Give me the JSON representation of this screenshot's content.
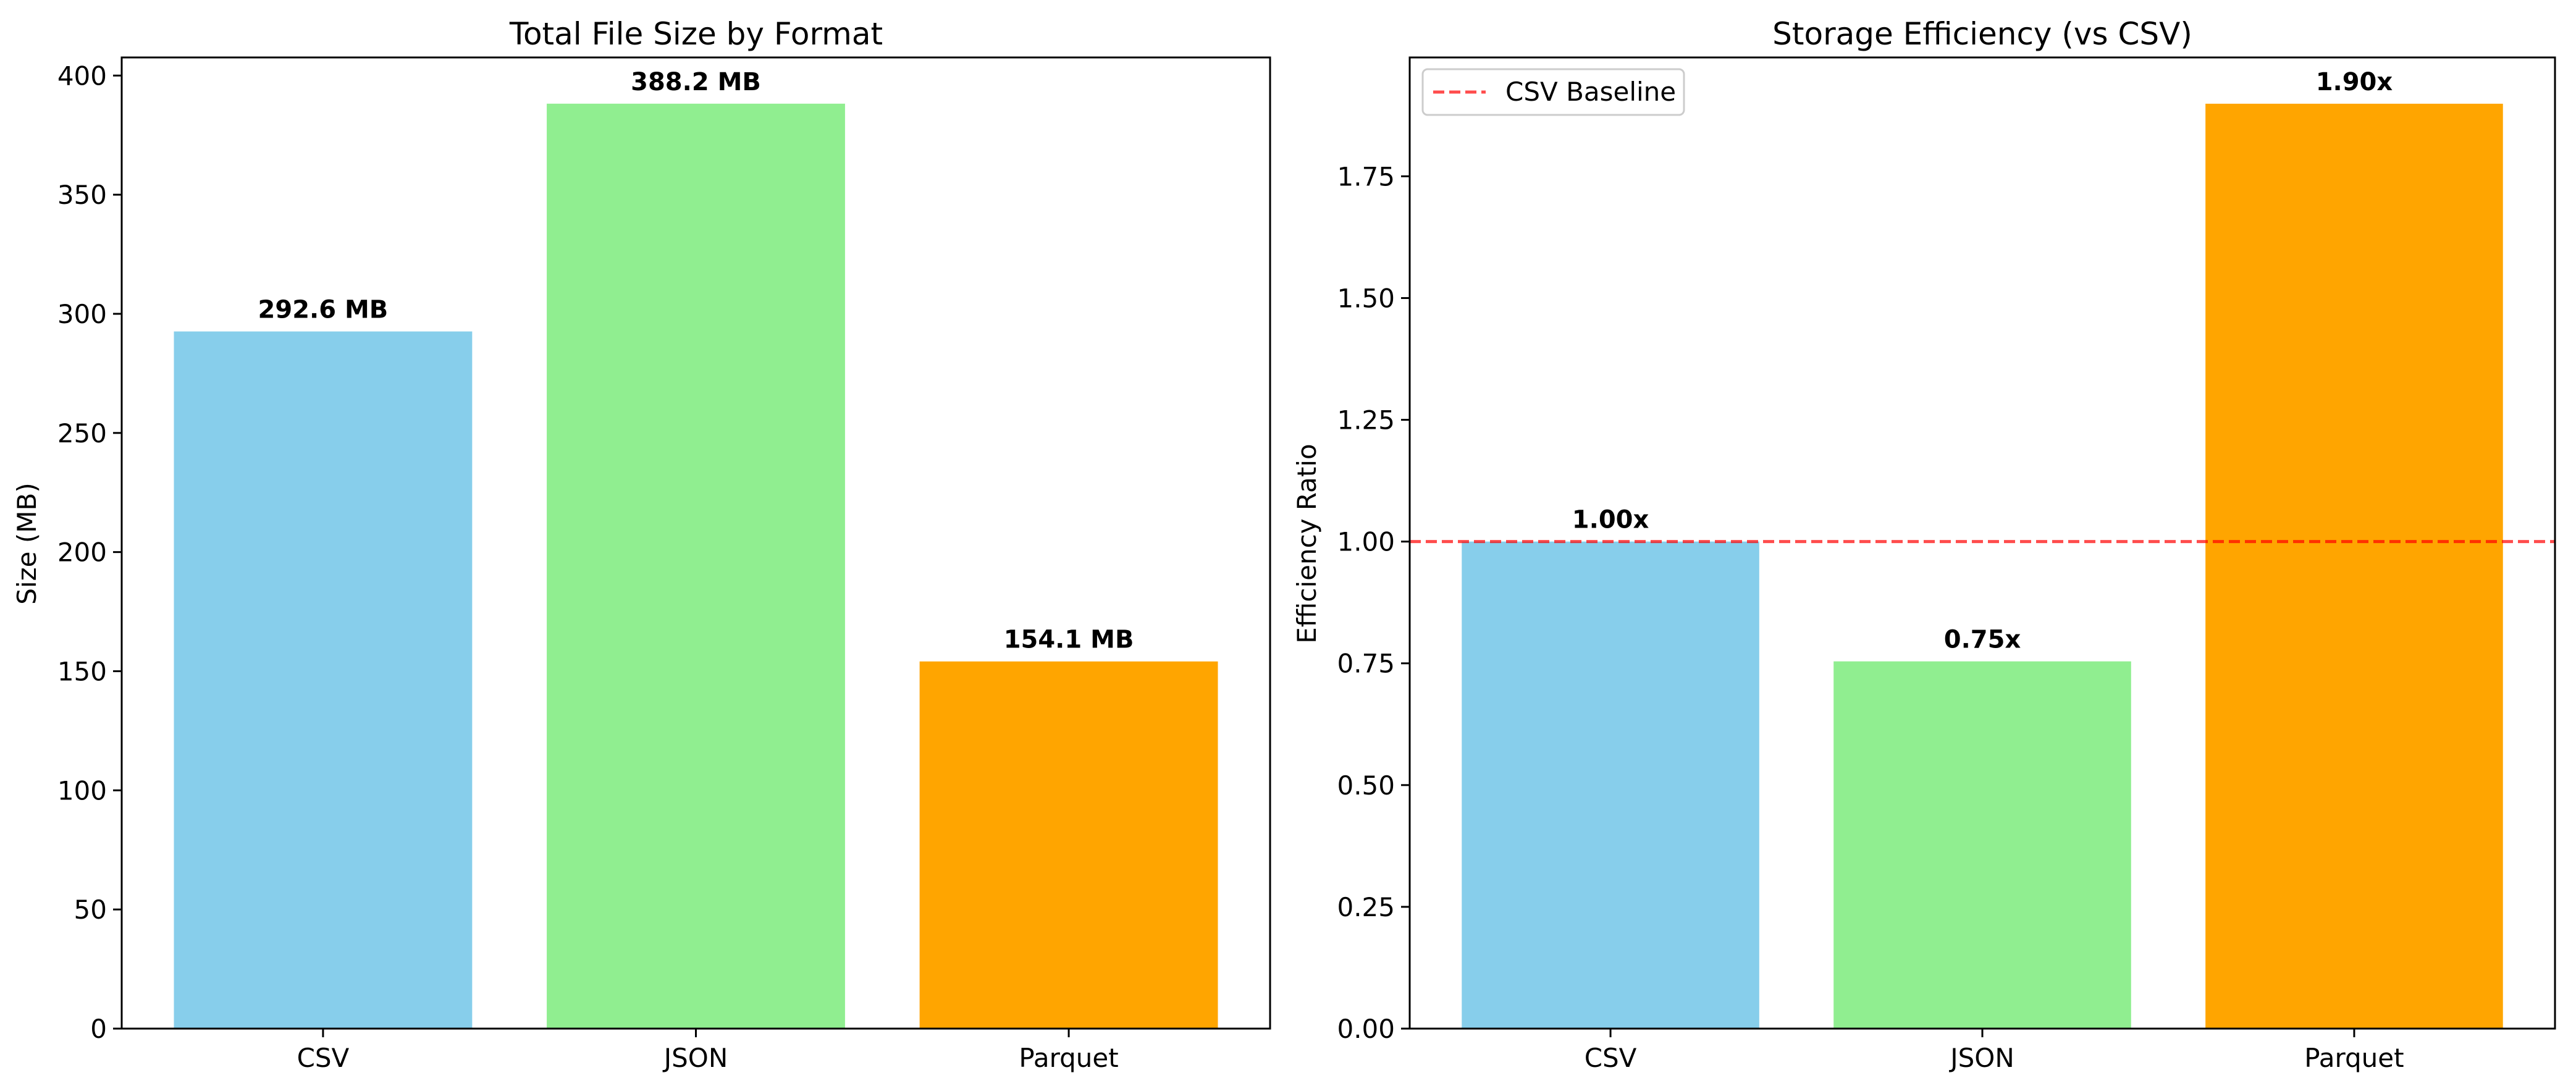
{
  "chart_data": [
    {
      "type": "bar",
      "title": "Total File Size by Format",
      "xlabel": "",
      "ylabel": "Size (MB)",
      "categories": [
        "CSV",
        "JSON",
        "Parquet"
      ],
      "values": [
        292.6,
        388.2,
        154.1
      ],
      "data_labels": [
        "292.6 MB",
        "388.2 MB",
        "154.1 MB"
      ],
      "colors": [
        "#87ceeb",
        "#90ee90",
        "#ffa500"
      ],
      "ylim": [
        0,
        407.6
      ],
      "yticks": [
        0,
        50,
        100,
        150,
        200,
        250,
        300,
        350,
        400
      ],
      "ytick_labels": [
        "0",
        "50",
        "100",
        "150",
        "200",
        "250",
        "300",
        "350",
        "400"
      ],
      "grid": false
    },
    {
      "type": "bar",
      "title": "Storage Efficiency (vs CSV)",
      "xlabel": "",
      "ylabel": "Efficiency Ratio",
      "categories": [
        "CSV",
        "JSON",
        "Parquet"
      ],
      "values": [
        1.0,
        0.754,
        1.899
      ],
      "data_labels": [
        "1.00x",
        "0.75x",
        "1.90x"
      ],
      "colors": [
        "#87ceeb",
        "#90ee90",
        "#ffa500"
      ],
      "ylim": [
        0,
        1.994
      ],
      "yticks": [
        0,
        0.25,
        0.5,
        0.75,
        1.0,
        1.25,
        1.5,
        1.75
      ],
      "ytick_labels": [
        "0.00",
        "0.25",
        "0.50",
        "0.75",
        "1.00",
        "1.25",
        "1.50",
        "1.75"
      ],
      "grid": false,
      "reference_line": {
        "y": 1.0,
        "label": "CSV Baseline",
        "color": "#ff0000",
        "style": "dashed",
        "alpha": 0.7
      },
      "legend": {
        "placement": "top-left",
        "entries": [
          "CSV Baseline"
        ]
      }
    }
  ]
}
